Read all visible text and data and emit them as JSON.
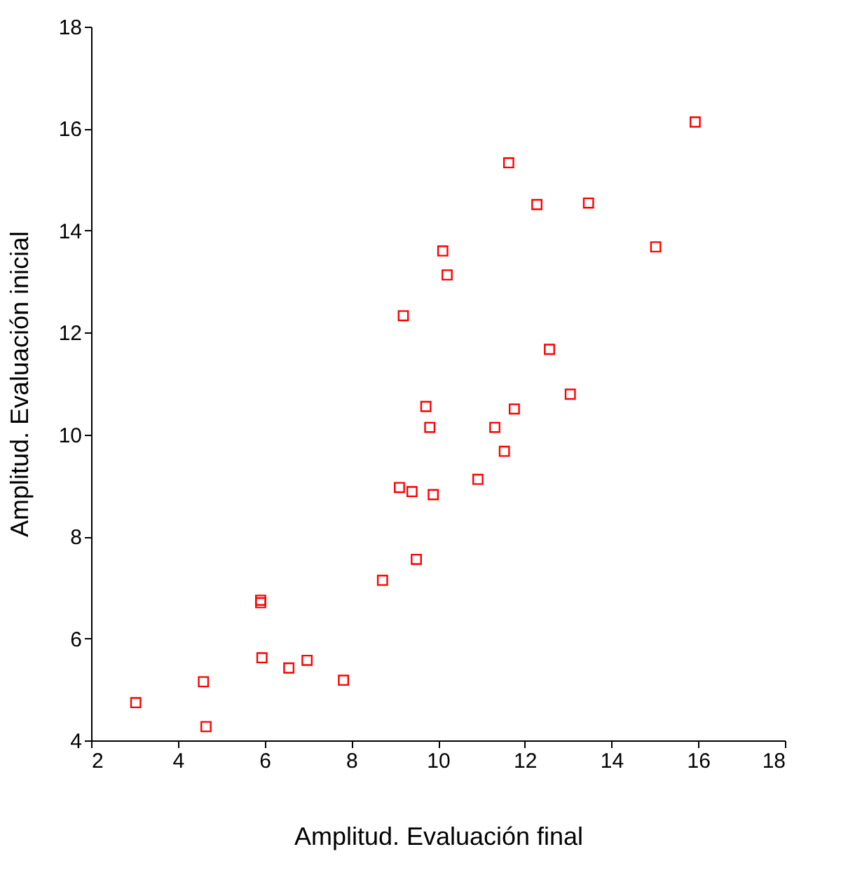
{
  "chart_data": {
    "type": "scatter",
    "xlabel": "Amplitud. Evaluación final",
    "ylabel": "Amplitud. Evaluación inicial",
    "x": [
      3.03,
      4.59,
      4.65,
      5.91,
      5.91,
      5.94,
      6.56,
      6.98,
      7.82,
      8.72,
      9.11,
      9.4,
      9.5,
      9.89,
      9.2,
      9.72,
      9.81,
      10.11,
      10.21,
      10.92,
      11.31,
      11.53,
      11.76,
      11.63,
      12.28,
      12.57,
      13.05,
      13.47,
      15.02,
      15.93
    ],
    "series": [
      {
        "color": "#ff0000",
        "values": [
          4.74,
          5.15,
          4.27,
          6.75,
          6.7,
          5.62,
          5.42,
          5.57,
          5.18,
          7.14,
          8.96,
          8.88,
          7.55,
          8.82,
          12.33,
          10.55,
          10.14,
          13.6,
          13.13,
          9.12,
          10.14,
          9.67,
          10.5,
          15.33,
          14.51,
          11.67,
          10.79,
          14.54,
          13.68,
          16.13
        ]
      }
    ],
    "xlim": [
      2,
      18
    ],
    "ylim": [
      4,
      18
    ],
    "xticks": [
      2,
      4,
      6,
      8,
      10,
      12,
      14,
      16,
      18
    ],
    "yticks": [
      4,
      6,
      8,
      10,
      12,
      14,
      16,
      18
    ],
    "marker": "square",
    "grid": false
  }
}
